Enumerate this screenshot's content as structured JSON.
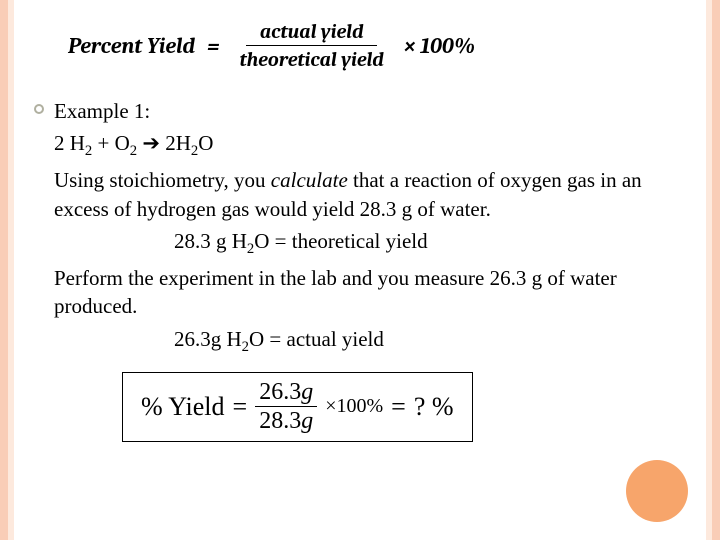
{
  "formula_top": {
    "lhs": "Percent Yield",
    "eq": "=",
    "numerator": "actual yield",
    "denominator": "theoretical yield",
    "times": "× 100%"
  },
  "example": {
    "title": "Example 1:",
    "equation_html": "2 H<sub>2</sub>  +   O<sub>2</sub>  <span class='arrow'>➔</span>   2H<sub>2</sub>O",
    "para1_html": "Using stoichiometry, you <span class='italic'>calculate</span> that a reaction of oxygen gas in an excess of hydrogen gas would yield 28.3 g of water.",
    "theo_line_html": "28.3 g H<sub>2</sub>O = theoretical yield",
    "para2": "Perform the experiment in the lab and you measure 26.3 g of water produced.",
    "actual_line_html": "26.3g H<sub>2</sub>O = actual yield"
  },
  "formula_box": {
    "lhs": "% Yield",
    "eq1": "=",
    "numerator": "26.3",
    "num_unit": "g",
    "denominator": "28.3",
    "den_unit": "g",
    "times": "×100%",
    "eq2": "=",
    "result": "?   %"
  },
  "colors": {
    "stripe_outer": "#f9cdb7",
    "stripe_inner": "#fde9dd",
    "circle": "#f7a56b",
    "bullet_border": "#b0b0a0"
  }
}
